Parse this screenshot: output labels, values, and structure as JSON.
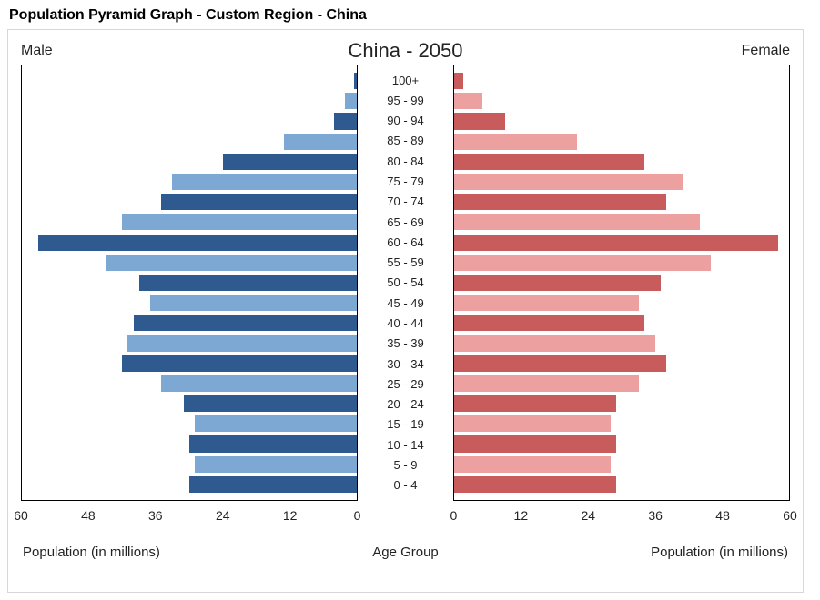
{
  "page_title": "Population Pyramid Graph - Custom Region - China",
  "chart": {
    "type": "population-pyramid",
    "title": "China - 2050",
    "left_label": "Male",
    "right_label": "Female",
    "axis_title_left": "Population (in millions)",
    "axis_title_center": "Age Group",
    "axis_title_right": "Population (in millions)",
    "x_max": 60,
    "x_ticks_left": [
      60,
      48,
      36,
      24,
      12,
      0
    ],
    "x_ticks_right": [
      0,
      12,
      24,
      36,
      48,
      60
    ],
    "age_groups": [
      "100+",
      "95 - 99",
      "90 - 94",
      "85 - 89",
      "80 - 84",
      "75 - 79",
      "70 - 74",
      "65 - 69",
      "60 - 64",
      "55 - 59",
      "50 - 54",
      "45 - 49",
      "40 - 44",
      "35 - 39",
      "30 - 34",
      "25 - 29",
      "20 - 24",
      "15 - 19",
      "10 - 14",
      "5 - 9",
      "0 - 4"
    ],
    "male_values": [
      0.5,
      2,
      4,
      13,
      24,
      33,
      35,
      42,
      57,
      45,
      39,
      37,
      40,
      41,
      42,
      35,
      31,
      29,
      30,
      29,
      30
    ],
    "female_values": [
      1.5,
      5,
      9,
      22,
      34,
      41,
      38,
      44,
      58,
      46,
      37,
      33,
      34,
      36,
      38,
      33,
      29,
      28,
      29,
      28,
      29
    ],
    "colors": {
      "male_dark": "#2e5a8f",
      "male_light": "#7ea8d4",
      "female_dark": "#c85b5b",
      "female_light": "#eda0a0",
      "frame_border": "#d7d7d7",
      "panel_border": "#000000",
      "text": "#222222",
      "background": "#ffffff"
    },
    "title_fontsize": 22,
    "label_fontsize": 16,
    "tick_fontsize": 14,
    "age_fontsize": 13,
    "axis_title_fontsize": 15
  }
}
